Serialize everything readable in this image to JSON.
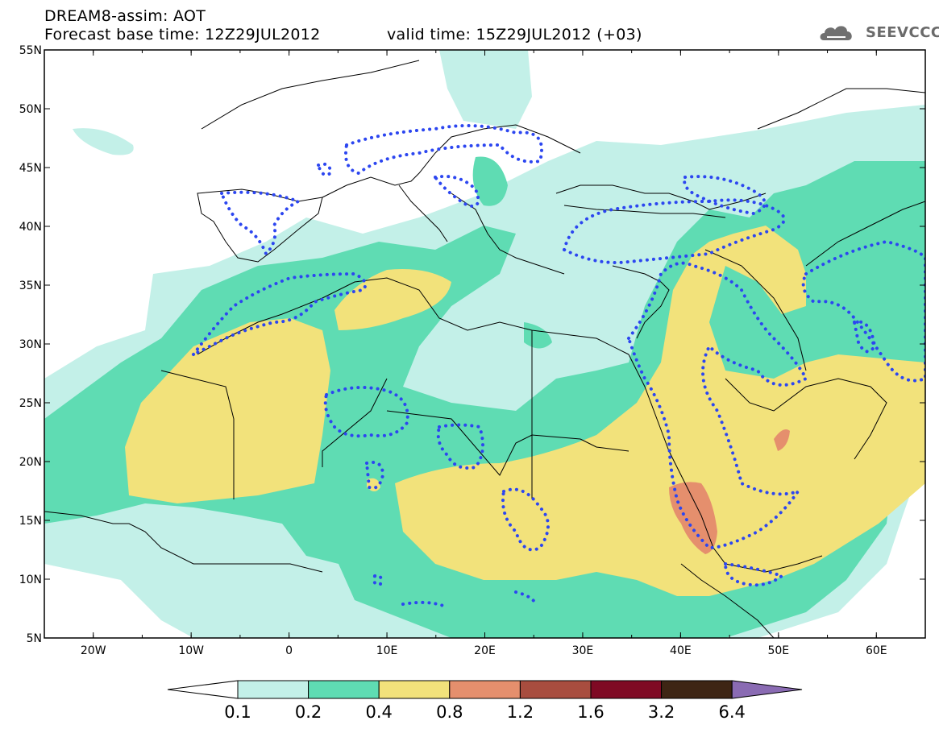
{
  "header": {
    "line1": "DREAM8-assim: AOT",
    "line2": "Forecast base time: 12Z29JUL2012",
    "line2b": "valid time: 15Z29JUL2012 (+03)"
  },
  "logo": {
    "text": "SEEVCCC",
    "icon": "cloud-icon"
  },
  "map": {
    "lon_range": [
      -25,
      65
    ],
    "lat_range": [
      5,
      55
    ],
    "lat_labels": [
      "55N",
      "50N",
      "45N",
      "40N",
      "35N",
      "30N",
      "25N",
      "20N",
      "15N",
      "10N",
      "5N"
    ],
    "lon_labels": [
      "20W",
      "10W",
      "0",
      "10E",
      "20E",
      "30E",
      "40E",
      "50E",
      "60E"
    ]
  },
  "colorbar": {
    "labels": [
      "0.1",
      "0.2",
      "0.4",
      "0.8",
      "1.2",
      "1.6",
      "3.2",
      "6.4"
    ],
    "colors": [
      "#ffffff",
      "#c3f0e8",
      "#5fdcb3",
      "#f2e27b",
      "#e58f6d",
      "#a84d3f",
      "#7f0a24",
      "#3e2514",
      "#8a6bb3"
    ]
  },
  "palette": {
    "light_teal": "#c3f0e8",
    "teal": "#5fdcb3",
    "yellow": "#f2e27b",
    "salmon": "#e58f6d",
    "dotted_contour": "#2c46f0"
  }
}
